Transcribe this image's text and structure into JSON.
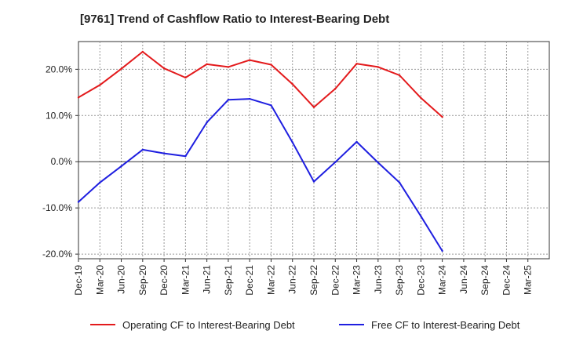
{
  "chart_data": {
    "type": "line",
    "title": "[9761]  Trend of Cashflow Ratio to Interest-Bearing Debt",
    "xlabel": "",
    "ylabel": "",
    "x": [
      "Dec-19",
      "Mar-20",
      "Jun-20",
      "Sep-20",
      "Dec-20",
      "Mar-21",
      "Jun-21",
      "Sep-21",
      "Dec-21",
      "Mar-22",
      "Jun-22",
      "Sep-22",
      "Dec-22",
      "Mar-23",
      "Jun-23",
      "Sep-23",
      "Dec-23",
      "Mar-24",
      "Jun-24",
      "Sep-24",
      "Dec-24",
      "Mar-25"
    ],
    "ylim": [
      -21,
      26
    ],
    "yticks": [
      -20,
      -10,
      0,
      10,
      20
    ],
    "ytick_labels": [
      "-20.0%",
      "-10.0%",
      "0.0%",
      "10.0%",
      "20.0%"
    ],
    "grid": true,
    "legend_position": "bottom",
    "series": [
      {
        "name": "Operating CF to Interest-Bearing Debt",
        "color": "#e31a1c",
        "values": [
          13.9,
          16.6,
          20.1,
          23.8,
          20.2,
          18.2,
          21.1,
          20.5,
          22.0,
          21.0,
          16.8,
          11.8,
          15.8,
          21.2,
          20.5,
          18.7,
          13.8,
          9.7,
          null,
          null,
          null,
          null
        ]
      },
      {
        "name": "Free CF to Interest-Bearing Debt",
        "color": "#1f1fe0",
        "values": [
          -8.7,
          -4.5,
          -1.0,
          2.6,
          1.8,
          1.2,
          8.5,
          13.4,
          13.6,
          12.2,
          4.2,
          -4.3,
          -0.1,
          4.3,
          -0.2,
          -4.5,
          -11.8,
          -19.3,
          null,
          null,
          null,
          null
        ]
      }
    ]
  }
}
